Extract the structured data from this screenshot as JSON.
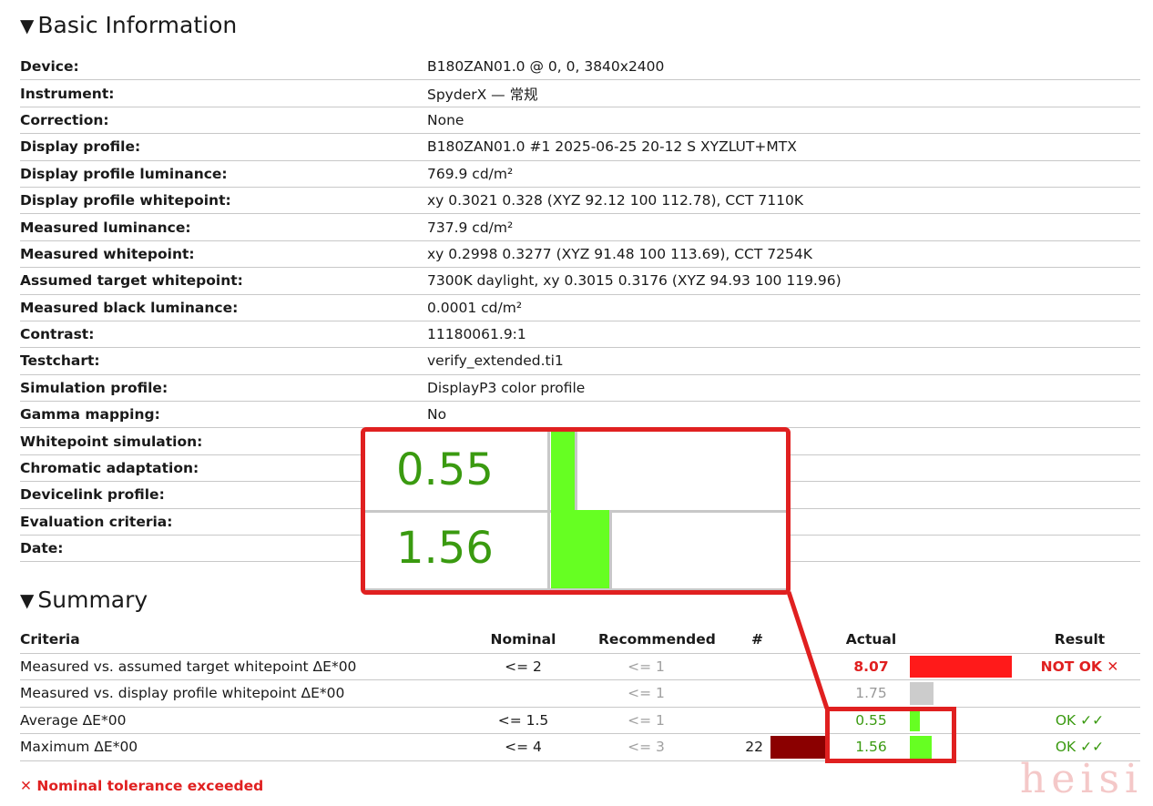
{
  "basic": {
    "title": "Basic Information",
    "rows": [
      {
        "key": "Device:",
        "value": "B180ZAN01.0 @ 0, 0, 3840x2400"
      },
      {
        "key": "Instrument:",
        "value": "SpyderX — 常规"
      },
      {
        "key": "Correction:",
        "value": "None"
      },
      {
        "key": "Display profile:",
        "value": "B180ZAN01.0 #1 2025-06-25 20-12 S XYZLUT+MTX"
      },
      {
        "key": "Display profile luminance:",
        "value": "769.9 cd/m²"
      },
      {
        "key": "Display profile whitepoint:",
        "value": "xy 0.3021 0.328 (XYZ 92.12 100 112.78), CCT 7110K"
      },
      {
        "key": "Measured luminance:",
        "value": "737.9 cd/m²"
      },
      {
        "key": "Measured whitepoint:",
        "value": "xy 0.2998 0.3277 (XYZ 91.48 100 113.69), CCT 7254K"
      },
      {
        "key": "Assumed target whitepoint:",
        "value": "7300K daylight, xy 0.3015 0.3176 (XYZ 94.93 100 119.96)"
      },
      {
        "key": "Measured black luminance:",
        "value": "0.0001 cd/m²"
      },
      {
        "key": "Contrast:",
        "value": "11180061.9:1"
      },
      {
        "key": "Testchart:",
        "value": "verify_extended.ti1"
      },
      {
        "key": "Simulation profile:",
        "value": "DisplayP3 color profile"
      },
      {
        "key": "Gamma mapping:",
        "value": "No"
      },
      {
        "key": "Whitepoint simulation:",
        "value": ""
      },
      {
        "key": "Chromatic adaptation:",
        "value": ""
      },
      {
        "key": "Devicelink profile:",
        "value": ""
      },
      {
        "key": "Evaluation criteria:",
        "value": ""
      },
      {
        "key": "Date:",
        "value": ""
      }
    ]
  },
  "summary": {
    "title": "Summary",
    "headers": {
      "criteria": "Criteria",
      "nominal": "Nominal",
      "recommended": "Recommended",
      "hash": "#",
      "actual": "Actual",
      "result": "Result"
    },
    "rows": [
      {
        "criteria": "Measured vs. assumed target whitepoint ΔE*00",
        "nominal": "<= 2",
        "recommended": "<= 1",
        "hash": "",
        "actual": "8.07",
        "actual_fraction": 0.93,
        "bar_color": "#ff1a1a",
        "result": "NOT OK ✕",
        "status": "bad"
      },
      {
        "criteria": "Measured vs. display profile whitepoint ΔE*00",
        "nominal": "",
        "recommended": "<= 1",
        "hash": "",
        "actual": "1.75",
        "actual_fraction": 0.22,
        "bar_color": "#cccccc",
        "result": "",
        "status": "neutral"
      },
      {
        "criteria": "Average ΔE*00",
        "nominal": "<= 1.5",
        "recommended": "<= 1",
        "hash": "",
        "actual": "0.55",
        "actual_fraction": 0.09,
        "bar_color": "#66ff22",
        "result": "OK ✓✓",
        "status": "ok"
      },
      {
        "criteria": "Maximum ΔE*00",
        "nominal": "<= 4",
        "recommended": "<= 3",
        "hash": "22",
        "hash_bar_color": "#8b0000",
        "actual": "1.56",
        "actual_fraction": 0.2,
        "bar_color": "#66ff22",
        "result": "OK ✓✓",
        "status": "ok"
      }
    ],
    "footnote": "✕ Nominal tolerance exceeded"
  },
  "zoom": {
    "values": [
      "0.55",
      "1.56"
    ],
    "bar_color": "#66ff22",
    "frame_color": "#e02020"
  },
  "watermark": "heisi"
}
